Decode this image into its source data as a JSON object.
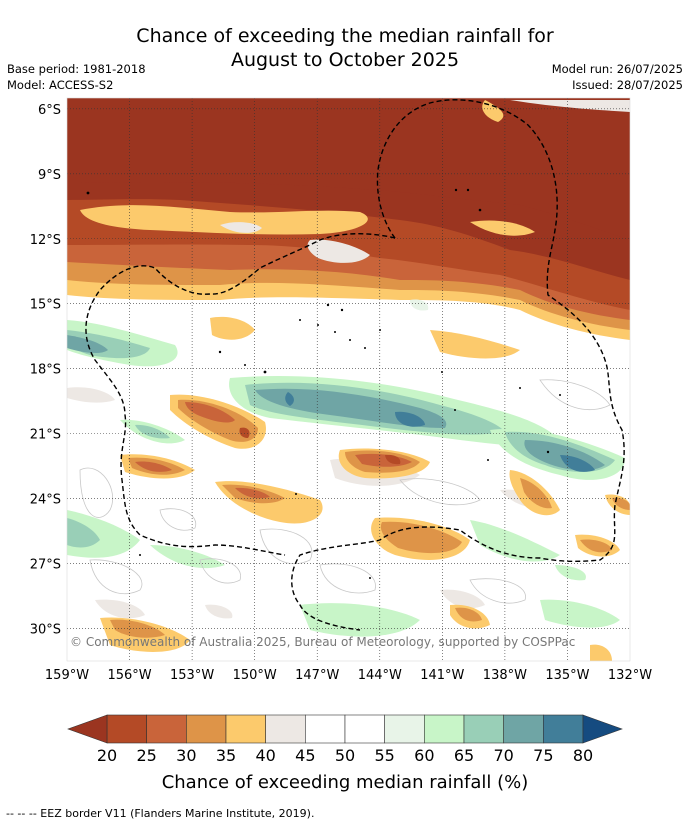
{
  "title": {
    "line1": "Chance of exceeding the median rainfall for",
    "line2": "August to October 2025"
  },
  "meta": {
    "base_period": "Base period: 1981-2018",
    "model": "Model: ACCESS-S2",
    "model_run": "Model run: 26/07/2025",
    "issued": "Issued: 28/07/2025"
  },
  "map": {
    "lat_labels": [
      "6°S",
      "9°S",
      "12°S",
      "15°S",
      "18°S",
      "21°S",
      "24°S",
      "27°S",
      "30°S"
    ],
    "lon_labels": [
      "159°W",
      "156°W",
      "153°W",
      "150°W",
      "147°W",
      "144°W",
      "141°W",
      "138°W",
      "135°W",
      "132°W"
    ],
    "copyright": "© Commonwealth of Australia 2025, Bureau of Meteorology, supported by COSPPac"
  },
  "colorbar": {
    "label": "Chance of exceeding median rainfall (%)",
    "ticks": [
      "20",
      "25",
      "30",
      "35",
      "40",
      "45",
      "50",
      "55",
      "60",
      "65",
      "70",
      "75",
      "80"
    ],
    "colors": [
      "#9b3520",
      "#b44a26",
      "#c9643a",
      "#de9448",
      "#fcca6c",
      "#ede8e4",
      "#ffffff",
      "#ffffff",
      "#e8f4e8",
      "#c8f5c8",
      "#99cfb7",
      "#6fa5a5",
      "#417e99",
      "#154b80"
    ]
  },
  "footnote": "--  --  -- EEZ border V11 (Flanders Marine Institute, 2019)."
}
